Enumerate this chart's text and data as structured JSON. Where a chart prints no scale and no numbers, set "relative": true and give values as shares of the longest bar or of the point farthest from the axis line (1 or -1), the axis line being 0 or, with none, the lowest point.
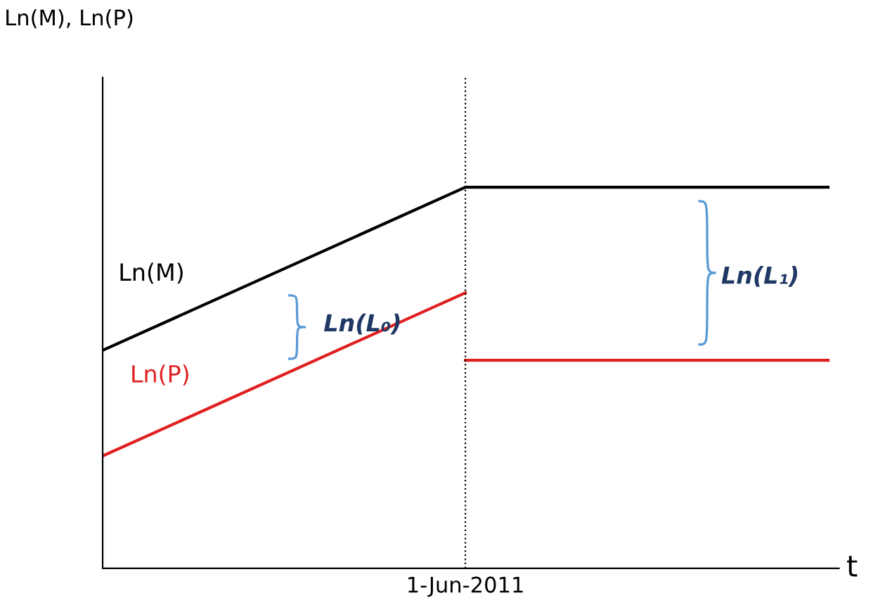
{
  "chart_data": {
    "type": "line",
    "relative": true,
    "xlabel": "t",
    "categories": [
      null,
      null,
      null
    ],
    "series": [
      {
        "name": "Ln(M)",
        "color": "#000000",
        "values": [
          0.572,
          1.0,
          1.0
        ]
      },
      {
        "name": "Ln(P)",
        "color": "#e02020",
        "values": [
          0.295,
          0.723,
          null
        ]
      },
      {
        "color": "#e02020",
        "values": [
          null,
          0.546,
          0.546
        ]
      }
    ],
    "annotations": [
      "Ln(M), Ln(P)",
      "1-Jun-2011",
      "Ln(L₀)",
      "Ln(L₁)"
    ],
    "legend": false,
    "marker": "none",
    "line_style": "solid"
  }
}
